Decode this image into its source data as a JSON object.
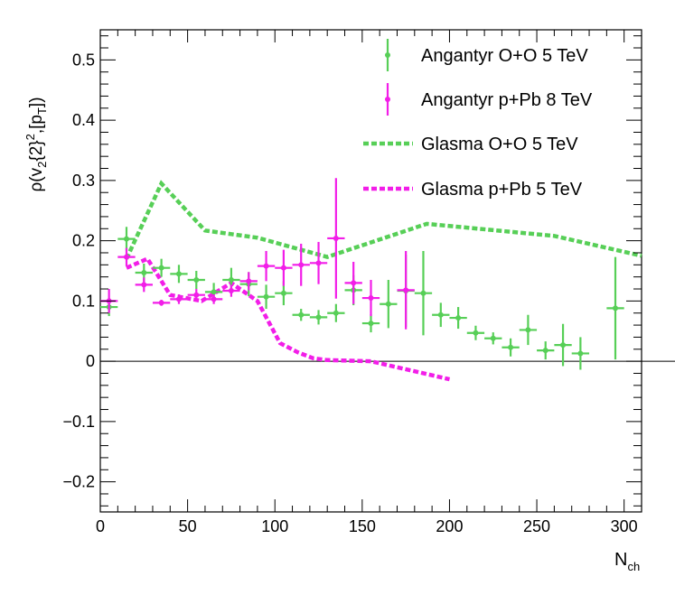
{
  "chart_data": {
    "type": "scatter",
    "title": "",
    "xlabel": "N",
    "xlabel_sub": "ch",
    "ylabel_parts": {
      "rho": "ρ(v",
      "sub2": "2",
      "brace": "{2}",
      "sup2": "2",
      "mid": ",[p",
      "subT": "T",
      "end": "])"
    },
    "xlim": [
      0,
      310
    ],
    "ylim": [
      -0.25,
      0.55
    ],
    "xticks": [
      {
        "value": 0,
        "label": "0"
      },
      {
        "value": 50,
        "label": "50"
      },
      {
        "value": 100,
        "label": "100"
      },
      {
        "value": 150,
        "label": "150"
      },
      {
        "value": 200,
        "label": "200"
      },
      {
        "value": 250,
        "label": "250"
      },
      {
        "value": 300,
        "label": "300"
      }
    ],
    "yticks": [
      {
        "value": -0.2,
        "label": "−0.2"
      },
      {
        "value": -0.1,
        "label": "−0.1"
      },
      {
        "value": 0,
        "label": "0"
      },
      {
        "value": 0.1,
        "label": "0.1"
      },
      {
        "value": 0.2,
        "label": "0.2"
      },
      {
        "value": 0.3,
        "label": "0.3"
      },
      {
        "value": 0.4,
        "label": "0.4"
      },
      {
        "value": 0.5,
        "label": "0.5"
      }
    ],
    "legend_position": "top-right",
    "series": [
      {
        "name": "Angantyr O+O 5 TeV",
        "kind": "points",
        "color": "#57cf57",
        "points": [
          {
            "x": 5,
            "y": 0.09,
            "xerr": 5,
            "yerr": 0.015
          },
          {
            "x": 15,
            "y": 0.203,
            "xerr": 5,
            "yerr": 0.02
          },
          {
            "x": 25,
            "y": 0.147,
            "xerr": 5,
            "yerr": 0.015
          },
          {
            "x": 35,
            "y": 0.155,
            "xerr": 5,
            "yerr": 0.015
          },
          {
            "x": 45,
            "y": 0.145,
            "xerr": 5,
            "yerr": 0.015
          },
          {
            "x": 55,
            "y": 0.135,
            "xerr": 5,
            "yerr": 0.015
          },
          {
            "x": 65,
            "y": 0.115,
            "xerr": 5,
            "yerr": 0.015
          },
          {
            "x": 75,
            "y": 0.135,
            "xerr": 5,
            "yerr": 0.02
          },
          {
            "x": 85,
            "y": 0.128,
            "xerr": 5,
            "yerr": 0.02
          },
          {
            "x": 95,
            "y": 0.107,
            "xerr": 5,
            "yerr": 0.02
          },
          {
            "x": 105,
            "y": 0.113,
            "xerr": 5,
            "yerr": 0.02
          },
          {
            "x": 115,
            "y": 0.077,
            "xerr": 5,
            "yerr": 0.01
          },
          {
            "x": 125,
            "y": 0.073,
            "xerr": 5,
            "yerr": 0.012
          },
          {
            "x": 135,
            "y": 0.08,
            "xerr": 5,
            "yerr": 0.015
          },
          {
            "x": 145,
            "y": 0.118,
            "xerr": 5,
            "yerr": 0.025
          },
          {
            "x": 155,
            "y": 0.063,
            "xerr": 5,
            "yerr": 0.015
          },
          {
            "x": 165,
            "y": 0.095,
            "xerr": 5,
            "yerr": 0.04
          },
          {
            "x": 175,
            "y": 0.117,
            "xerr": 5,
            "yerr": 0.06
          },
          {
            "x": 185,
            "y": 0.113,
            "xerr": 5,
            "yerr": 0.07
          },
          {
            "x": 195,
            "y": 0.077,
            "xerr": 5,
            "yerr": 0.02
          },
          {
            "x": 205,
            "y": 0.072,
            "xerr": 5,
            "yerr": 0.018
          },
          {
            "x": 215,
            "y": 0.047,
            "xerr": 5,
            "yerr": 0.012
          },
          {
            "x": 225,
            "y": 0.038,
            "xerr": 5,
            "yerr": 0.01
          },
          {
            "x": 235,
            "y": 0.023,
            "xerr": 5,
            "yerr": 0.015
          },
          {
            "x": 245,
            "y": 0.052,
            "xerr": 5,
            "yerr": 0.025
          },
          {
            "x": 255,
            "y": 0.018,
            "xerr": 5,
            "yerr": 0.015
          },
          {
            "x": 265,
            "y": 0.027,
            "xerr": 5,
            "yerr": 0.035
          },
          {
            "x": 275,
            "y": 0.013,
            "xerr": 5,
            "yerr": 0.027
          },
          {
            "x": 295,
            "y": 0.088,
            "xerr": 5,
            "yerr": 0.085
          }
        ]
      },
      {
        "name": "Angantyr p+Pb 8 TeV",
        "kind": "points",
        "color": "#f21ee8",
        "points": [
          {
            "x": 5,
            "y": 0.1,
            "xerr": 5,
            "yerr": 0.02
          },
          {
            "x": 15,
            "y": 0.173,
            "xerr": 5,
            "yerr": 0.015
          },
          {
            "x": 25,
            "y": 0.127,
            "xerr": 5,
            "yerr": 0.012
          },
          {
            "x": 35,
            "y": 0.097,
            "xerr": 5,
            "yerr": 0.005
          },
          {
            "x": 45,
            "y": 0.103,
            "xerr": 5,
            "yerr": 0.008
          },
          {
            "x": 55,
            "y": 0.11,
            "xerr": 5,
            "yerr": 0.01
          },
          {
            "x": 65,
            "y": 0.103,
            "xerr": 5,
            "yerr": 0.008
          },
          {
            "x": 75,
            "y": 0.117,
            "xerr": 5,
            "yerr": 0.01
          },
          {
            "x": 85,
            "y": 0.133,
            "xerr": 5,
            "yerr": 0.015
          },
          {
            "x": 95,
            "y": 0.158,
            "xerr": 5,
            "yerr": 0.025
          },
          {
            "x": 105,
            "y": 0.155,
            "xerr": 5,
            "yerr": 0.03
          },
          {
            "x": 115,
            "y": 0.16,
            "xerr": 5,
            "yerr": 0.035
          },
          {
            "x": 125,
            "y": 0.163,
            "xerr": 5,
            "yerr": 0.035
          },
          {
            "x": 135,
            "y": 0.204,
            "xerr": 5,
            "yerr": 0.1
          },
          {
            "x": 145,
            "y": 0.13,
            "xerr": 5,
            "yerr": 0.035
          },
          {
            "x": 155,
            "y": 0.105,
            "xerr": 5,
            "yerr": 0.03
          },
          {
            "x": 175,
            "y": 0.118,
            "xerr": 5,
            "yerr": 0.065
          }
        ]
      },
      {
        "name": "Glasma O+O 5 TeV",
        "kind": "dashed-line",
        "color": "#57cf57",
        "x": [
          15,
          35,
          60,
          90,
          130,
          187,
          260,
          310
        ],
        "y": [
          0.17,
          0.295,
          0.217,
          0.205,
          0.173,
          0.228,
          0.208,
          0.175
        ]
      },
      {
        "name": "Glasma p+Pb 5 TeV",
        "kind": "dashed-line",
        "color": "#f21ee8",
        "x": [
          15,
          27,
          40,
          58,
          75,
          90,
          103,
          113,
          122,
          130,
          155,
          200
        ],
        "y": [
          0.155,
          0.17,
          0.11,
          0.1,
          0.13,
          0.1,
          0.03,
          0.015,
          0.005,
          0.002,
          0,
          -0.03
        ]
      }
    ]
  }
}
